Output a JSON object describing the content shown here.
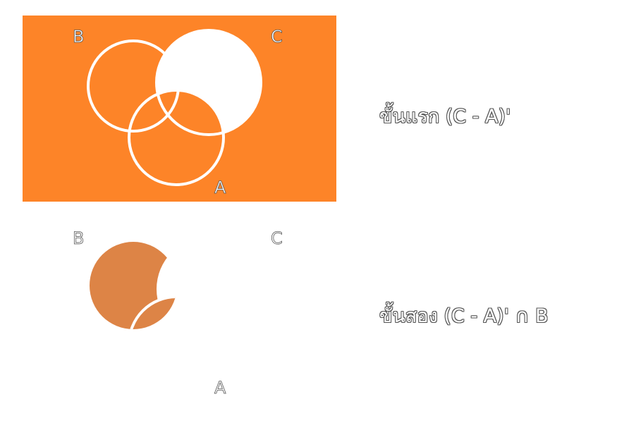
{
  "colors": {
    "primary": "#fd8428",
    "secondary": "#dd8446",
    "background": "#ffffff",
    "outline": "#555555"
  },
  "diagram1": {
    "labels": {
      "b": "B",
      "c": "C",
      "a": "A"
    }
  },
  "diagram2": {
    "labels": {
      "b": "B",
      "c": "C",
      "a": "A"
    }
  },
  "steps": {
    "step1": "ขั้นแรก (C - A)'",
    "step2": "ขั้นสอง (C - A)' ∩ B"
  }
}
